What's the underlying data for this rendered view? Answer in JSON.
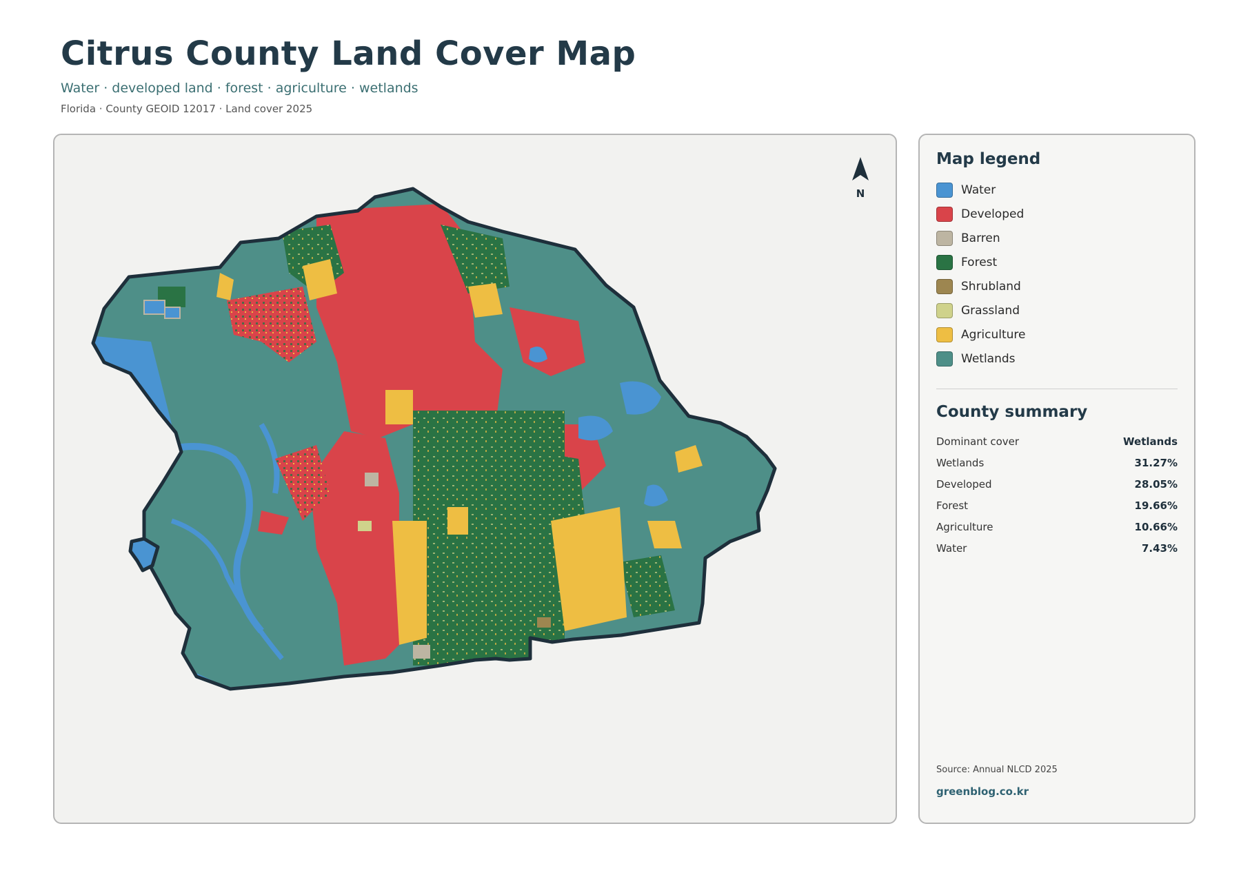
{
  "header": {
    "title": "Citrus County Land Cover Map",
    "subtitle": "Water · developed land · forest · agriculture · wetlands",
    "meta": "Florida · County GEOID 12017 · Land cover 2025"
  },
  "map": {
    "north_label": "N",
    "colors": {
      "water": "#4a94d2",
      "developed": "#d9444a",
      "barren": "#bdb5a2",
      "forest": "#2a7344",
      "shrubland": "#9d8650",
      "grassland": "#cfd28b",
      "agriculture": "#eebe43",
      "wetlands": "#4e8f88",
      "outline": "#1e2f3b"
    }
  },
  "legend": {
    "title": "Map legend",
    "items": [
      {
        "label": "Water",
        "color": "#4a94d2"
      },
      {
        "label": "Developed",
        "color": "#d9444a"
      },
      {
        "label": "Barren",
        "color": "#bdb5a2"
      },
      {
        "label": "Forest",
        "color": "#2a7344"
      },
      {
        "label": "Shrubland",
        "color": "#9d8650"
      },
      {
        "label": "Grassland",
        "color": "#cfd28b"
      },
      {
        "label": "Agriculture",
        "color": "#eebe43"
      },
      {
        "label": "Wetlands",
        "color": "#4e8f88"
      }
    ]
  },
  "summary": {
    "title": "County summary",
    "rows": [
      {
        "key": "Dominant cover",
        "value": "Wetlands"
      },
      {
        "key": "Wetlands",
        "value": "31.27%"
      },
      {
        "key": "Developed",
        "value": "28.05%"
      },
      {
        "key": "Forest",
        "value": "19.66%"
      },
      {
        "key": "Agriculture",
        "value": "10.66%"
      },
      {
        "key": "Water",
        "value": "7.43%"
      }
    ]
  },
  "footer": {
    "source": "Source: Annual NLCD 2025",
    "site": "greenblog.co.kr"
  }
}
